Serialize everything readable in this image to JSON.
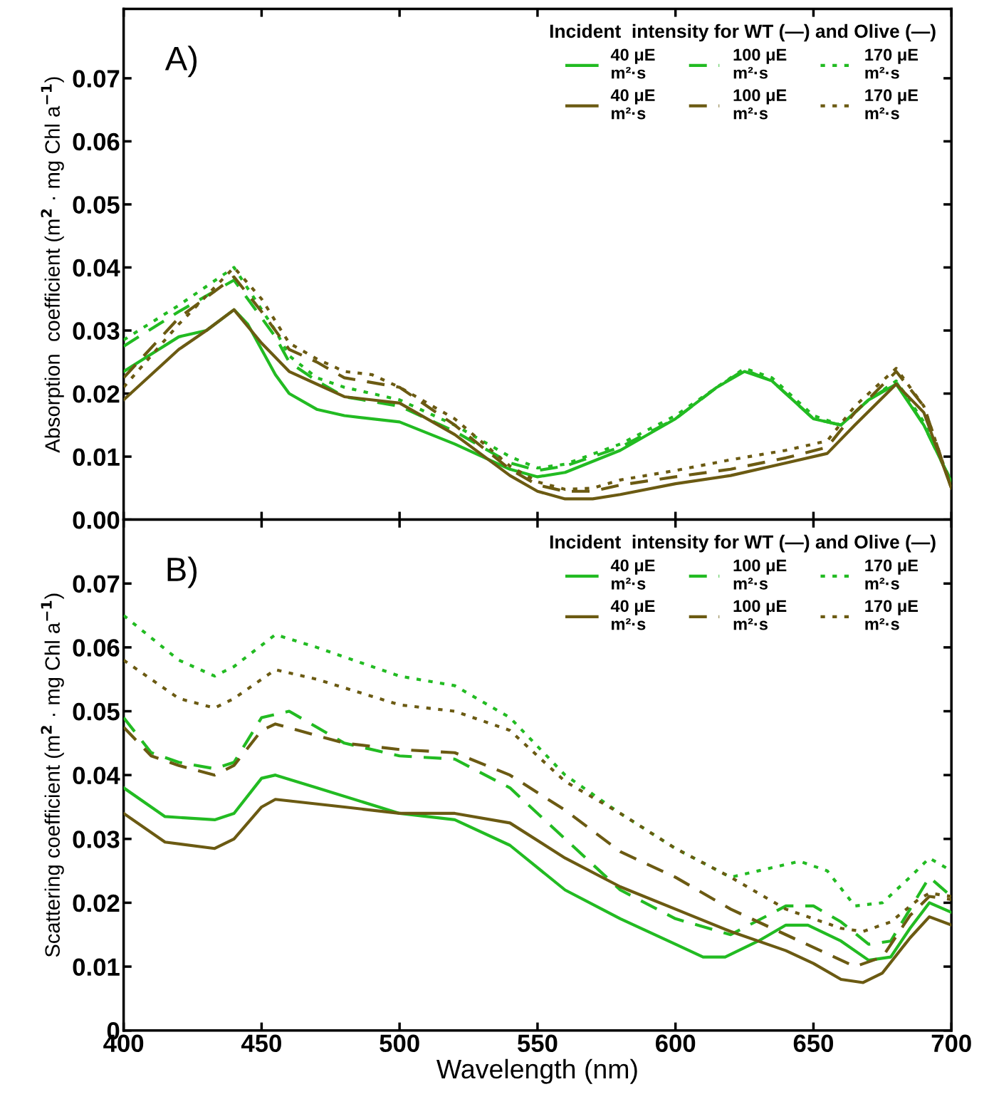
{
  "chart_data": [
    {
      "type": "line",
      "annotations": [
        "A)"
      ],
      "ylabel": "Absorption  coefficient (m$^{2}$ · mg Chl a$^{−1}$)",
      "legend_title": "Incident  intensity for WT (—) and Olive (—)",
      "legend": "top right",
      "grid": false,
      "tick_labels": "y",
      "xlim": [
        400,
        700
      ],
      "xticks": [
        400,
        450,
        500,
        550,
        600,
        650,
        700
      ],
      "ylim": [
        0,
        0.081
      ],
      "yticks": [
        {
          "value": 0,
          "label": "0.00"
        },
        0.01,
        0.02,
        0.03,
        0.04,
        0.05,
        0.06,
        0.07
      ],
      "series": [
        {
          "name": "40 μE\nm²·s",
          "color": "#22bb22",
          "line_style": "solid",
          "x": [
            400,
            420,
            430,
            440,
            445,
            455,
            460,
            470,
            480,
            500,
            520,
            540,
            550,
            560,
            580,
            600,
            615,
            625,
            635,
            650,
            660,
            670,
            680,
            690,
            700
          ],
          "values": [
            0.0235,
            0.029,
            0.03,
            0.0333,
            0.031,
            0.023,
            0.02,
            0.0175,
            0.0165,
            0.0155,
            0.012,
            0.008,
            0.0068,
            0.0075,
            0.011,
            0.016,
            0.021,
            0.0235,
            0.022,
            0.016,
            0.015,
            0.019,
            0.0215,
            0.015,
            0.006
          ]
        },
        {
          "name": "100 μE\nm²·s",
          "color": "#22bb22",
          "line_style": "dashed",
          "x": [
            400,
            420,
            440,
            455,
            460,
            470,
            480,
            500,
            520,
            540,
            550,
            560,
            580,
            600,
            615,
            625,
            635,
            650,
            660,
            670,
            680,
            690,
            700
          ],
          "values": [
            0.0275,
            0.033,
            0.038,
            0.029,
            0.025,
            0.022,
            0.0195,
            0.018,
            0.014,
            0.009,
            0.0078,
            0.0085,
            0.0115,
            0.016,
            0.021,
            0.0238,
            0.022,
            0.016,
            0.015,
            0.019,
            0.0218,
            0.015,
            0.006
          ]
        },
        {
          "name": "170 μE\nm²·s",
          "color": "#22bb22",
          "line_style": "dotted",
          "x": [
            400,
            420,
            440,
            455,
            460,
            470,
            480,
            500,
            520,
            540,
            550,
            560,
            580,
            600,
            615,
            625,
            635,
            650,
            660,
            670,
            680,
            690,
            700
          ],
          "values": [
            0.0285,
            0.034,
            0.04,
            0.03,
            0.026,
            0.0225,
            0.021,
            0.019,
            0.015,
            0.01,
            0.0082,
            0.0088,
            0.012,
            0.0165,
            0.021,
            0.024,
            0.0225,
            0.0165,
            0.015,
            0.019,
            0.022,
            0.0155,
            0.006
          ]
        },
        {
          "name": "40 μE\nm²·s",
          "color": "#6b5a12",
          "line_style": "solid",
          "x": [
            400,
            420,
            430,
            440,
            450,
            460,
            470,
            480,
            500,
            520,
            540,
            550,
            560,
            570,
            580,
            600,
            620,
            640,
            655,
            665,
            680,
            690,
            700
          ],
          "values": [
            0.019,
            0.027,
            0.03,
            0.0333,
            0.028,
            0.0235,
            0.0215,
            0.0195,
            0.0185,
            0.0135,
            0.007,
            0.0045,
            0.0033,
            0.0033,
            0.004,
            0.0057,
            0.007,
            0.009,
            0.0105,
            0.015,
            0.0215,
            0.017,
            0.005
          ]
        },
        {
          "name": "100 μE\nm²·s",
          "color": "#6b5a12",
          "line_style": "dashed",
          "x": [
            400,
            420,
            440,
            450,
            460,
            470,
            480,
            500,
            520,
            540,
            550,
            560,
            570,
            580,
            600,
            620,
            640,
            655,
            665,
            680,
            690,
            700
          ],
          "values": [
            0.0225,
            0.032,
            0.0385,
            0.033,
            0.027,
            0.025,
            0.0225,
            0.021,
            0.015,
            0.008,
            0.0055,
            0.0045,
            0.0045,
            0.0055,
            0.0068,
            0.008,
            0.0098,
            0.0115,
            0.017,
            0.0235,
            0.018,
            0.005
          ]
        },
        {
          "name": "170 μE\nm²·s",
          "color": "#6b5a12",
          "line_style": "dotted",
          "x": [
            400,
            420,
            440,
            450,
            460,
            470,
            480,
            490,
            500,
            520,
            540,
            550,
            560,
            570,
            580,
            600,
            620,
            640,
            655,
            665,
            680,
            690,
            700
          ],
          "values": [
            0.021,
            0.031,
            0.04,
            0.035,
            0.028,
            0.0255,
            0.0235,
            0.023,
            0.021,
            0.016,
            0.0085,
            0.006,
            0.0048,
            0.005,
            0.0063,
            0.0078,
            0.0095,
            0.011,
            0.0125,
            0.018,
            0.024,
            0.018,
            0.005
          ]
        }
      ]
    },
    {
      "type": "line",
      "annotations": [
        "B)"
      ],
      "xlabel": "Wavelength (nm)",
      "ylabel": "Scattering coefficient (m$^{2}$ · mg Chl a$^{−1}$)",
      "legend_title": "Incident  intensity for WT (—) and Olive (—)",
      "legend": "top right",
      "grid": false,
      "xlim": [
        400,
        700
      ],
      "xticks": [
        400,
        450,
        500,
        550,
        600,
        650,
        700
      ],
      "ylim": [
        0,
        0.08
      ],
      "yticks": [
        0,
        0.01,
        0.02,
        0.03,
        0.04,
        0.05,
        0.06,
        0.07
      ],
      "series": [
        {
          "name": "40 μE\nm²·s",
          "color": "#22bb22",
          "line_style": "solid",
          "x": [
            400,
            415,
            433,
            440,
            450,
            455,
            470,
            500,
            520,
            540,
            560,
            580,
            600,
            610,
            618,
            630,
            640,
            648,
            660,
            670,
            678,
            685,
            692,
            700
          ],
          "values": [
            0.038,
            0.0335,
            0.033,
            0.034,
            0.0395,
            0.04,
            0.038,
            0.034,
            0.033,
            0.029,
            0.022,
            0.0175,
            0.0135,
            0.0115,
            0.0115,
            0.014,
            0.0165,
            0.0165,
            0.014,
            0.011,
            0.0115,
            0.016,
            0.02,
            0.0185
          ]
        },
        {
          "name": "100 μE\nm²·s",
          "color": "#22bb22",
          "line_style": "dashed",
          "x": [
            400,
            410,
            420,
            433,
            440,
            450,
            460,
            480,
            500,
            520,
            540,
            560,
            580,
            600,
            620,
            640,
            650,
            660,
            670,
            678,
            685,
            692,
            700
          ],
          "values": [
            0.049,
            0.0435,
            0.042,
            0.041,
            0.042,
            0.049,
            0.05,
            0.045,
            0.043,
            0.0425,
            0.038,
            0.03,
            0.022,
            0.0175,
            0.015,
            0.0195,
            0.0195,
            0.017,
            0.0135,
            0.014,
            0.019,
            0.024,
            0.021
          ]
        },
        {
          "name": "170 μE\nm²·s",
          "color": "#22bb22",
          "line_style": "dotted",
          "x": [
            400,
            420,
            433,
            440,
            455,
            470,
            500,
            520,
            540,
            560,
            580,
            600,
            620,
            630,
            645,
            655,
            665,
            675,
            685,
            692,
            700
          ],
          "values": [
            0.065,
            0.058,
            0.0555,
            0.057,
            0.062,
            0.06,
            0.0555,
            0.054,
            0.049,
            0.04,
            0.034,
            0.0285,
            0.024,
            0.025,
            0.0265,
            0.025,
            0.0195,
            0.02,
            0.024,
            0.027,
            0.025
          ]
        },
        {
          "name": "40 μE\nm²·s",
          "color": "#6b5a12",
          "line_style": "solid",
          "x": [
            400,
            415,
            433,
            440,
            450,
            455,
            480,
            500,
            520,
            540,
            560,
            580,
            600,
            620,
            640,
            650,
            660,
            668,
            675,
            685,
            692,
            700
          ],
          "values": [
            0.034,
            0.0295,
            0.0285,
            0.03,
            0.035,
            0.0362,
            0.035,
            0.034,
            0.034,
            0.0325,
            0.027,
            0.0225,
            0.019,
            0.0155,
            0.0125,
            0.0105,
            0.008,
            0.0075,
            0.009,
            0.0145,
            0.0178,
            0.0165
          ]
        },
        {
          "name": "100 μE\nm²·s",
          "color": "#6b5a12",
          "line_style": "dashed",
          "x": [
            400,
            410,
            420,
            433,
            440,
            450,
            455,
            480,
            500,
            520,
            540,
            560,
            580,
            600,
            620,
            640,
            655,
            665,
            675,
            685,
            692,
            700
          ],
          "values": [
            0.0475,
            0.043,
            0.0415,
            0.04,
            0.0415,
            0.047,
            0.048,
            0.045,
            0.044,
            0.0435,
            0.04,
            0.0345,
            0.028,
            0.024,
            0.019,
            0.015,
            0.012,
            0.01,
            0.0115,
            0.018,
            0.021,
            0.0205
          ]
        },
        {
          "name": "170 μE\nm²·s",
          "color": "#6b5a12",
          "line_style": "dotted",
          "x": [
            400,
            420,
            433,
            440,
            455,
            470,
            500,
            520,
            540,
            560,
            580,
            600,
            620,
            640,
            660,
            668,
            678,
            688,
            692,
            700
          ],
          "values": [
            0.058,
            0.052,
            0.0505,
            0.052,
            0.0565,
            0.055,
            0.051,
            0.05,
            0.047,
            0.039,
            0.034,
            0.0285,
            0.024,
            0.019,
            0.016,
            0.0155,
            0.017,
            0.0205,
            0.0215,
            0.021
          ]
        }
      ]
    }
  ]
}
